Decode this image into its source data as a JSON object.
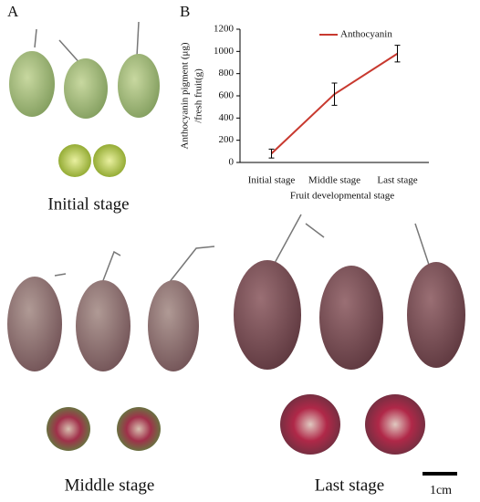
{
  "figure": {
    "panel_a": "A",
    "panel_b": "B",
    "stage_labels": [
      "Initial stage",
      "Middle stage",
      "Last stage"
    ],
    "scale_bar": "1cm"
  },
  "chart_data": {
    "type": "line",
    "xlabel": "Fruit developmental stage",
    "ylabel": [
      "Anthocyanin pigment (μg)",
      "/fresh fruit(g)"
    ],
    "categories": [
      "Initial stage",
      "Middle stage",
      "Last stage"
    ],
    "series": [
      {
        "name": "Anthocyanin",
        "color": "#c8392f",
        "values": [
          80,
          615,
          980
        ],
        "errors": [
          40,
          100,
          75
        ]
      }
    ],
    "ylim": [
      0,
      1200
    ],
    "yticks": [
      0,
      200,
      400,
      600,
      800,
      1000,
      1200
    ],
    "legend": "upper right"
  }
}
